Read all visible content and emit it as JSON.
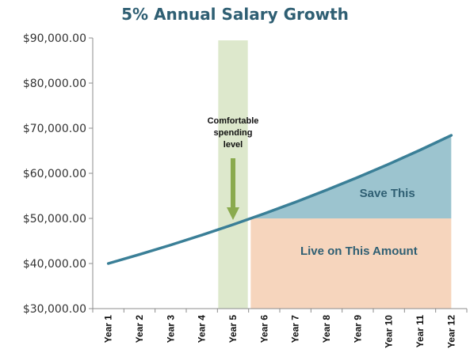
{
  "chart_data": {
    "type": "line",
    "title": "5% Annual Salary Growth",
    "categories": [
      "Year 1",
      "Year 2",
      "Year 3",
      "Year 4",
      "Year 5",
      "Year 6",
      "Year 7",
      "Year 8",
      "Year 9",
      "Year 10",
      "Year 11",
      "Year 12"
    ],
    "series": [
      {
        "values": [
          40000,
          42000,
          44100,
          46305,
          48620,
          51051,
          53604,
          56284,
          59098,
          62053,
          65156,
          68414
        ]
      }
    ],
    "ylim": [
      30000,
      90000
    ],
    "yticks": [
      30000,
      40000,
      50000,
      60000,
      70000,
      80000,
      90000
    ],
    "ytick_labels": [
      "$30,000.00",
      "$40,000.00",
      "$50,000.00",
      "$60,000.00",
      "$70,000.00",
      "$80,000.00",
      "$90,000.00"
    ],
    "grid": false,
    "highlight_band": {
      "category": "Year 5"
    },
    "spending_level": 50000,
    "annotations": {
      "comfortable": [
        "Comfortable",
        "spending",
        "level"
      ],
      "save": "Save This",
      "live": "Live on This Amount"
    },
    "colors": {
      "line": "#3a7f97",
      "band": "#dde8cc",
      "save_area": "#9cc4cf",
      "live_area": "#f6d5bd",
      "arrow": "#8aaa4d",
      "title": "#2f5f73"
    }
  }
}
